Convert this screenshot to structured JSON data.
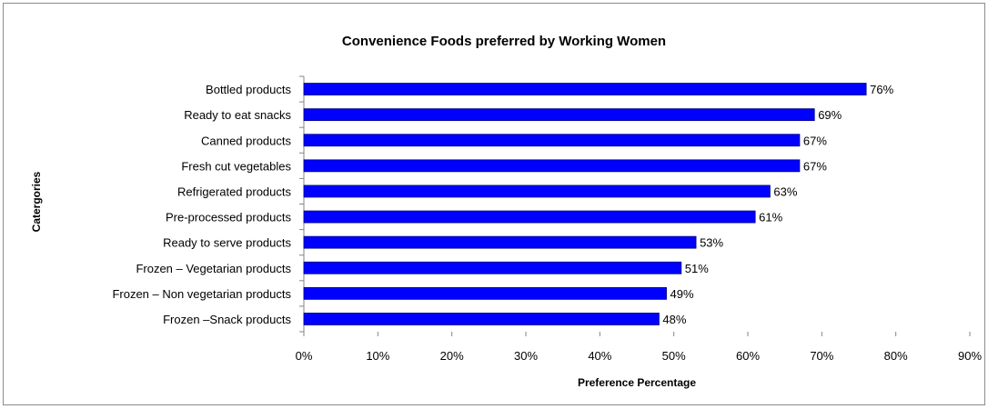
{
  "chart_data": {
    "type": "bar",
    "orientation": "horizontal",
    "title": "Convenience Foods preferred by Working Women",
    "xlabel": "Preference Percentage",
    "ylabel": "Catergories",
    "categories": [
      "Bottled products",
      "Ready to eat snacks",
      "Canned products",
      "Fresh cut vegetables",
      "Refrigerated products",
      "Pre-processed products",
      "Ready to serve products",
      "Frozen – Vegetarian products",
      "Frozen – Non vegetarian products",
      "Frozen –Snack products"
    ],
    "values": [
      76,
      69,
      67,
      67,
      63,
      61,
      53,
      51,
      49,
      48
    ],
    "value_labels": [
      "76%",
      "69%",
      "67%",
      "67%",
      "63%",
      "61%",
      "53%",
      "51%",
      "49%",
      "48%"
    ],
    "xlim": [
      0,
      90
    ],
    "xticks": [
      "0%",
      "10%",
      "20%",
      "30%",
      "40%",
      "50%",
      "60%",
      "70%",
      "80%",
      "90%"
    ],
    "bar_color": "#0000FF",
    "bar_border_color": "#000080",
    "grid": false,
    "legend": "none"
  }
}
